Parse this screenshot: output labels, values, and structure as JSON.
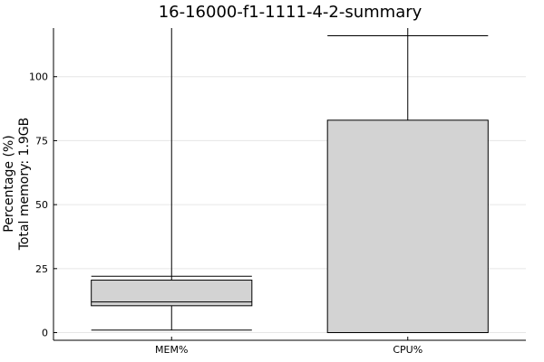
{
  "chart_data": {
    "type": "box",
    "title": "16-16000-f1-1111-4-2-summary",
    "ylabel_lines": [
      "Percentage (%)",
      "Total memory: 1.9GB"
    ],
    "xlabel": "",
    "categories": [
      "MEM%",
      "CPU%"
    ],
    "ylim": [
      -3,
      119
    ],
    "yticks": [
      0,
      25,
      50,
      75,
      100
    ],
    "grid": true,
    "legend": "none",
    "box_color": "#d3d3d3",
    "boxes": [
      {
        "name": "MEM%",
        "min": 1,
        "q1": 10.5,
        "median": 12,
        "q3": 20.5,
        "max": 22,
        "whisker_top": 119
      },
      {
        "name": "CPU%",
        "min": 0,
        "q1": 0,
        "median": 0,
        "q3": 83,
        "max": 116,
        "whisker_top": 119
      }
    ]
  }
}
